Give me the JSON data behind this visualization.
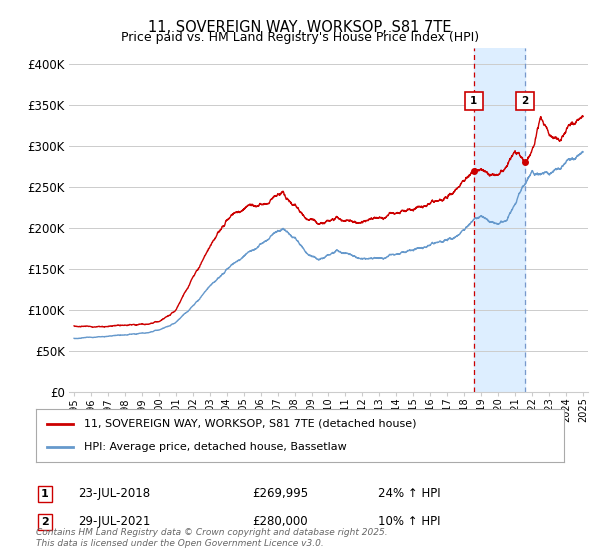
{
  "title": "11, SOVEREIGN WAY, WORKSOP, S81 7TE",
  "subtitle": "Price paid vs. HM Land Registry's House Price Index (HPI)",
  "ylim": [
    0,
    420000
  ],
  "yticks": [
    0,
    50000,
    100000,
    150000,
    200000,
    250000,
    300000,
    350000,
    400000
  ],
  "ytick_labels": [
    "£0",
    "£50K",
    "£100K",
    "£150K",
    "£200K",
    "£250K",
    "£300K",
    "£350K",
    "£400K"
  ],
  "legend_line1": "11, SOVEREIGN WAY, WORKSOP, S81 7TE (detached house)",
  "legend_line2": "HPI: Average price, detached house, Bassetlaw",
  "marker1_label": "1",
  "marker1_date": "23-JUL-2018",
  "marker1_price": "£269,995",
  "marker1_hpi": "24% ↑ HPI",
  "marker1_x": 2018.55,
  "marker1_y": 269995,
  "marker2_label": "2",
  "marker2_date": "29-JUL-2021",
  "marker2_price": "£280,000",
  "marker2_hpi": "10% ↑ HPI",
  "marker2_x": 2021.57,
  "marker2_y": 280000,
  "vline1_x": 2018.55,
  "vline2_x": 2021.57,
  "line_color_red": "#cc0000",
  "line_color_blue": "#6699cc",
  "vline1_color": "#cc0000",
  "vline2_color": "#7799cc",
  "shade_color": "#ddeeff",
  "footer": "Contains HM Land Registry data © Crown copyright and database right 2025.\nThis data is licensed under the Open Government Licence v3.0.",
  "bg_color": "#ffffff",
  "grid_color": "#cccccc",
  "xtick_years": [
    1995,
    1996,
    1997,
    1998,
    1999,
    2000,
    2001,
    2002,
    2003,
    2004,
    2005,
    2006,
    2007,
    2008,
    2009,
    2010,
    2011,
    2012,
    2013,
    2014,
    2015,
    2016,
    2017,
    2018,
    2019,
    2020,
    2021,
    2022,
    2023,
    2024,
    2025
  ]
}
